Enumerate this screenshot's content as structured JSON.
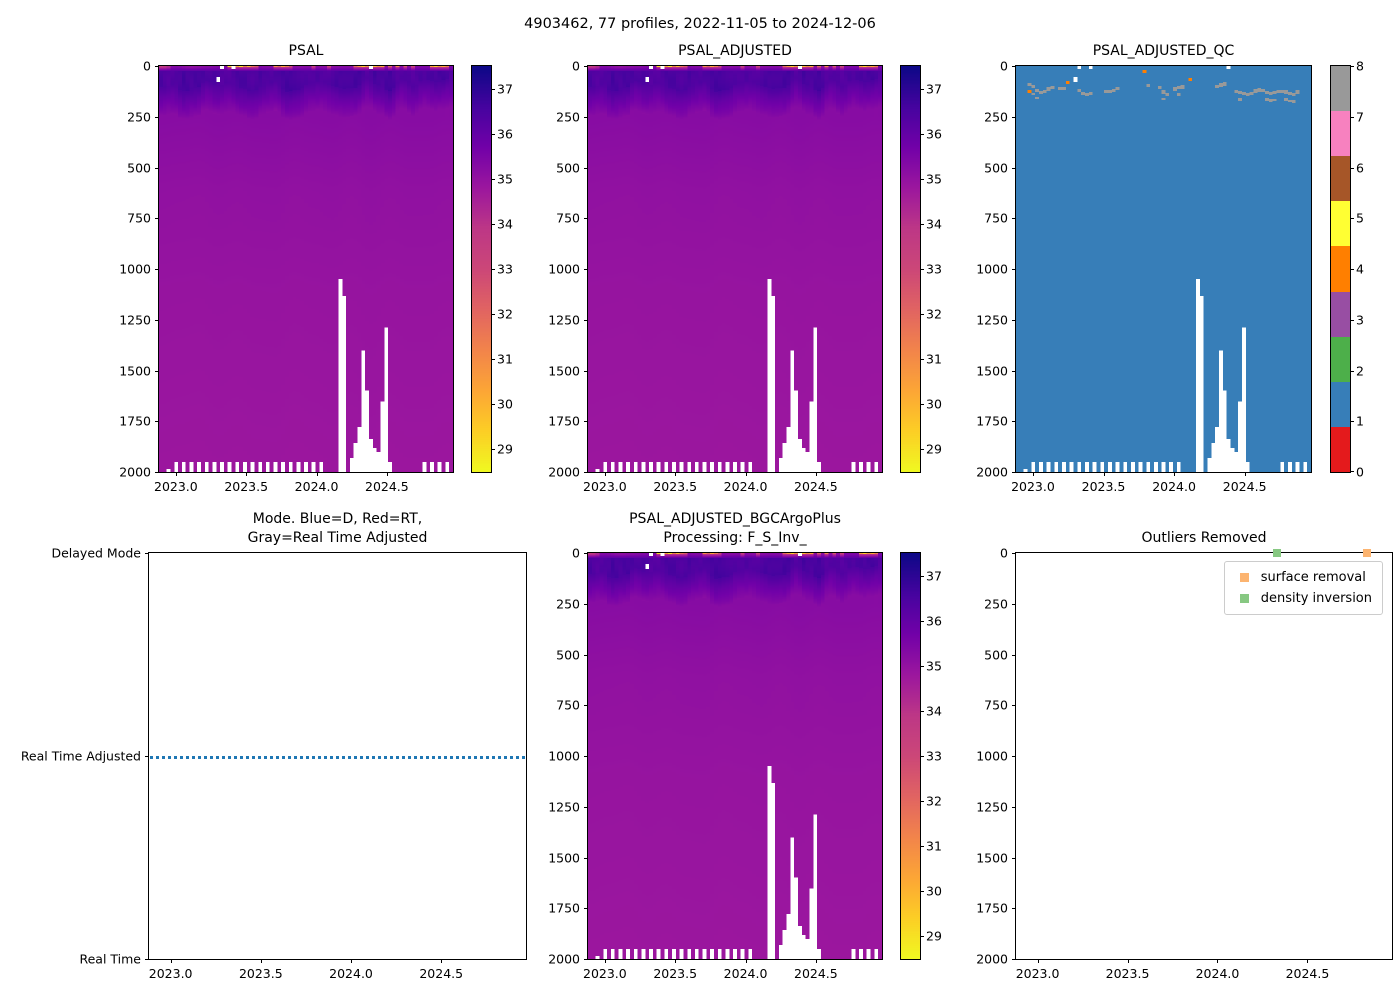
{
  "suptitle": "4903462, 77 profiles, 2022-11-05 to 2024-12-06",
  "panels": {
    "psal": {
      "title": "PSAL"
    },
    "psal_adjusted": {
      "title": "PSAL_ADJUSTED"
    },
    "psal_adjusted_qc": {
      "title": "PSAL_ADJUSTED_QC"
    },
    "mode": {
      "title_line1": "Mode. Blue=D, Red=RT,",
      "title_line2": "Gray=Real Time Adjusted",
      "ytick_labels": [
        "Delayed Mode",
        "Real Time Adjusted",
        "Real Time"
      ],
      "line_value": "Real Time Adjusted",
      "line_color": "#1f77b4"
    },
    "bgc": {
      "title_line1": "PSAL_ADJUSTED_BGCArgoPlus",
      "title_line2": "Processing: F_S_Inv_"
    },
    "outliers": {
      "title": "Outliers Removed",
      "legend": [
        {
          "label": "surface removal",
          "color": "#fcb470"
        },
        {
          "label": "density inversion",
          "color": "#87c882"
        }
      ]
    }
  },
  "chart_data": {
    "type": "heatmap",
    "float_id": "4903462",
    "n_profiles": 77,
    "date_range": "2022-11-05 to 2024-12-06",
    "x_axis": {
      "range": [
        2022.88,
        2024.97
      ],
      "ticks": [
        2023.0,
        2023.5,
        2024.0,
        2024.5
      ],
      "tick_labels": [
        "2023.0",
        "2023.5",
        "2024.0",
        "2024.5"
      ]
    },
    "depth_axis": {
      "range": [
        0,
        2000
      ],
      "inverted": true,
      "ticks": [
        0,
        250,
        500,
        750,
        1000,
        1250,
        1500,
        1750,
        2000
      ],
      "tick_labels": [
        "0",
        "250",
        "500",
        "750",
        "1000",
        "1250",
        "1500",
        "1750",
        "2000"
      ]
    },
    "salinity_colorbar": {
      "vmin": 28.5,
      "vmax": 37.5,
      "colormap": "plasma_r",
      "ticks": [
        29,
        30,
        31,
        32,
        33,
        34,
        35,
        36,
        37
      ],
      "plasma_stops": [
        "#0d0887",
        "#46039f",
        "#7201a8",
        "#9c179e",
        "#bd3786",
        "#cc4778",
        "#e16462",
        "#f2844b",
        "#fca636",
        "#fcce25",
        "#f0f921"
      ]
    },
    "qc_colorbar": {
      "ticks": [
        0,
        1,
        2,
        3,
        4,
        5,
        6,
        7,
        8
      ],
      "colors": [
        "#e41a1c",
        "#377eb8",
        "#4daf4a",
        "#984ea3",
        "#ff7f00",
        "#ffff33",
        "#a65628",
        "#f781bf",
        "#999999"
      ]
    },
    "field": {
      "deep_salinity_stops": [
        [
          250,
          35.25
        ],
        [
          600,
          35.05
        ],
        [
          1100,
          34.93
        ],
        [
          2000,
          34.82
        ]
      ],
      "surface_band_salinity": 36.3,
      "mixed_layer_depth_range": [
        60,
        135
      ],
      "surface_anomalies": [
        [
          0,
          33.6
        ],
        [
          1,
          33.9
        ],
        [
          2,
          34.3
        ],
        [
          18,
          29.2
        ],
        [
          20,
          30.5
        ],
        [
          21,
          29.0
        ],
        [
          22,
          31.5
        ],
        [
          23,
          30.0
        ],
        [
          24,
          31.8
        ],
        [
          25,
          32.5
        ],
        [
          30,
          31.0
        ],
        [
          31,
          32.2
        ],
        [
          32,
          30.4
        ],
        [
          33,
          31.5
        ],
        [
          34,
          33.0
        ],
        [
          40,
          33.5
        ],
        [
          44,
          33.2
        ],
        [
          51,
          32.0
        ],
        [
          52,
          30.8
        ],
        [
          53,
          29.5
        ],
        [
          54,
          31.0
        ],
        [
          56,
          29.8
        ],
        [
          57,
          31.2
        ],
        [
          58,
          30.3
        ],
        [
          60,
          32.2
        ],
        [
          62,
          31.2
        ],
        [
          64,
          32.6
        ],
        [
          66,
          33.2
        ],
        [
          71,
          30.5
        ],
        [
          72,
          29.4
        ],
        [
          73,
          31.0
        ],
        [
          74,
          30.2
        ],
        [
          75,
          31.5
        ]
      ],
      "missing": {
        "surface_profiles": [
          16,
          19,
          55
        ],
        "isolated": [
          [
            15,
            55,
            80
          ]
        ],
        "deep_below": [
          [
            2,
            1985
          ],
          [
            47,
            1050
          ],
          [
            48,
            1130
          ],
          [
            50,
            1930
          ],
          [
            51,
            1860
          ],
          [
            52,
            1780
          ],
          [
            53,
            1400
          ],
          [
            54,
            1600
          ],
          [
            55,
            1840
          ],
          [
            56,
            1880
          ],
          [
            57,
            1900
          ],
          [
            58,
            1650
          ],
          [
            59,
            1290
          ],
          [
            60,
            1950
          ]
        ],
        "bottom_notch_profiles": [
          4,
          6,
          8,
          10,
          12,
          14,
          16,
          18,
          20,
          22,
          24,
          26,
          28,
          30,
          32,
          34,
          36,
          38,
          40,
          42,
          69,
          71,
          73,
          75
        ],
        "bottom_notch_depth": 1950
      },
      "qc_background_value": 1,
      "qc_gray_value": 8,
      "qc_gray_band_depth_range": [
        78,
        135
      ],
      "qc_orange_value": 4,
      "qc_orange_points": [
        [
          3,
          120
        ],
        [
          13,
          72
        ],
        [
          33,
          18
        ],
        [
          45,
          60
        ]
      ]
    },
    "mode_series": {
      "categories": [
        "Real Time",
        "Real Time Adjusted",
        "Delayed Mode"
      ],
      "constant_value": "Real Time Adjusted",
      "line_style": "dotted"
    },
    "outlier_points": [
      {
        "label": "density inversion",
        "time": 2024.33,
        "depth": 0,
        "color": "#87c882"
      },
      {
        "label": "surface removal",
        "time": 2024.83,
        "depth": 0,
        "color": "#fcb470"
      }
    ]
  }
}
